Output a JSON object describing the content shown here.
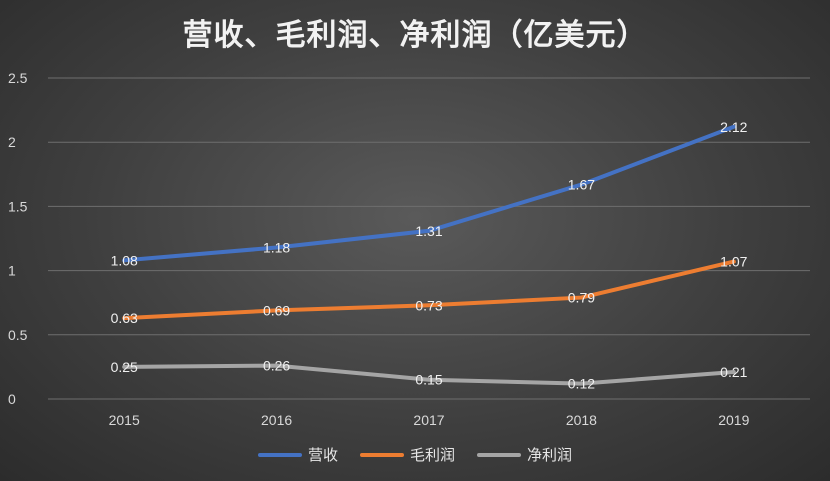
{
  "chart_data": {
    "type": "line",
    "title": "营收、毛利润、净利润（亿美元）",
    "categories": [
      "2015",
      "2016",
      "2017",
      "2018",
      "2019"
    ],
    "ylim": [
      0,
      2.5
    ],
    "yticks": [
      "0",
      "0.5",
      "1",
      "1.5",
      "2",
      "2.5"
    ],
    "grid": true,
    "legend_position": "bottom",
    "series": [
      {
        "name": "营收",
        "color": "#4472C4",
        "values": [
          1.08,
          1.18,
          1.31,
          1.67,
          2.12
        ],
        "labels": [
          "1.08",
          "1.18",
          "1.31",
          "1.67",
          "2.12"
        ]
      },
      {
        "name": "毛利润",
        "color": "#ED7D31",
        "values": [
          0.63,
          0.69,
          0.73,
          0.79,
          1.07
        ],
        "labels": [
          "0.63",
          "0.69",
          "0.73",
          "0.79",
          "1.07"
        ]
      },
      {
        "name": "净利润",
        "color": "#A5A5A5",
        "values": [
          0.25,
          0.26,
          0.15,
          0.12,
          0.21
        ],
        "labels": [
          "0.25",
          "0.26",
          "0.15",
          "0.12",
          "0.21"
        ]
      }
    ]
  }
}
